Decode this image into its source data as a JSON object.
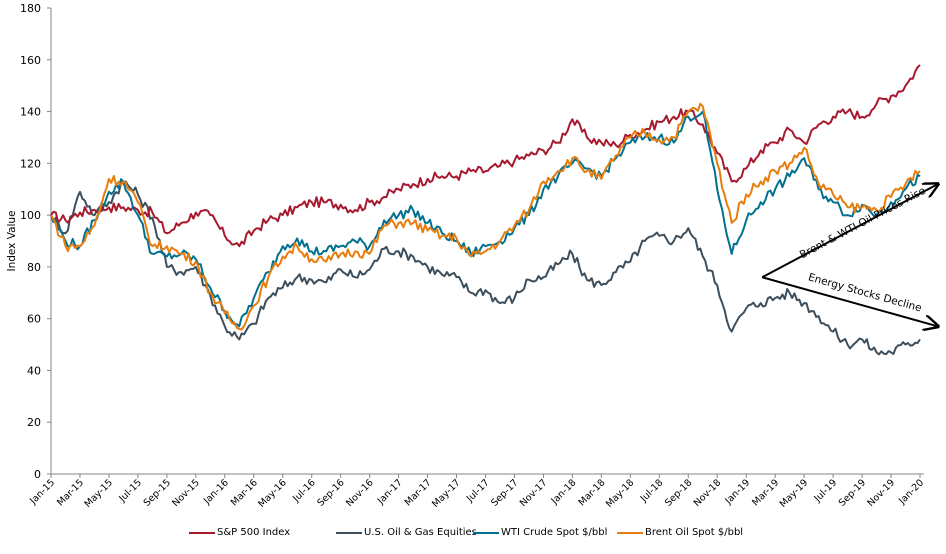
{
  "chart_data": {
    "type": "line",
    "title": "",
    "xlabel": "",
    "ylabel": "Index Value",
    "ylim": [
      0,
      180
    ],
    "yticks": [
      0,
      20,
      40,
      60,
      80,
      100,
      120,
      140,
      160,
      180
    ],
    "grid": false,
    "legend_position": "bottom",
    "x_tick_labels": [
      "Jan-15",
      "Mar-15",
      "May-15",
      "Jul-15",
      "Sep-15",
      "Nov-15",
      "Jan-16",
      "Mar-16",
      "May-16",
      "Jul-16",
      "Sep-16",
      "Nov-16",
      "Jan-17",
      "Mar-17",
      "May-17",
      "Jul-17",
      "Sep-17",
      "Nov-17",
      "Jan-18",
      "Mar-18",
      "May-18",
      "Jul-18",
      "Sep-18",
      "Nov-18",
      "Jan-19",
      "Mar-19",
      "May-19",
      "Jul-19",
      "Sep-19",
      "Nov-19",
      "Jan-20"
    ],
    "x": [
      "Jan-15",
      "Feb-15",
      "Mar-15",
      "Apr-15",
      "May-15",
      "Jun-15",
      "Jul-15",
      "Aug-15",
      "Sep-15",
      "Oct-15",
      "Nov-15",
      "Dec-15",
      "Jan-16",
      "Feb-16",
      "Mar-16",
      "Apr-16",
      "May-16",
      "Jun-16",
      "Jul-16",
      "Aug-16",
      "Sep-16",
      "Oct-16",
      "Nov-16",
      "Dec-16",
      "Jan-17",
      "Feb-17",
      "Mar-17",
      "Apr-17",
      "May-17",
      "Jun-17",
      "Jul-17",
      "Aug-17",
      "Sep-17",
      "Oct-17",
      "Nov-17",
      "Dec-17",
      "Jan-18",
      "Feb-18",
      "Mar-18",
      "Apr-18",
      "May-18",
      "Jun-18",
      "Jul-18",
      "Aug-18",
      "Sep-18",
      "Oct-18",
      "Nov-18",
      "Dec-18",
      "Jan-19",
      "Feb-19",
      "Mar-19",
      "Apr-19",
      "May-19",
      "Jun-19",
      "Jul-19",
      "Aug-19",
      "Sep-19",
      "Oct-19",
      "Nov-19",
      "Dec-19",
      "Jan-20"
    ],
    "series": [
      {
        "name": "S&P 500 Index",
        "color": "#A6192E",
        "values": [
          100,
          98,
          101,
          102,
          103,
          103,
          102,
          101,
          93,
          97,
          101,
          100,
          92,
          88,
          94,
          98,
          100,
          103,
          105,
          105,
          104,
          102,
          105,
          107,
          110,
          112,
          114,
          115,
          115,
          117,
          117,
          119,
          121,
          123,
          125,
          128,
          137,
          130,
          128,
          127,
          131,
          133,
          136,
          138,
          140,
          135,
          124,
          113,
          118,
          125,
          128,
          133,
          128,
          135,
          138,
          140,
          138,
          143,
          146,
          150,
          158
        ]
      },
      {
        "name": "U.S. Oil & Gas Equities",
        "color": "#3D4F5C",
        "values": [
          100,
          93,
          109,
          100,
          105,
          113,
          108,
          99,
          80,
          78,
          80,
          69,
          57,
          52,
          58,
          68,
          72,
          76,
          75,
          74,
          79,
          76,
          79,
          87,
          86,
          84,
          80,
          77,
          76,
          70,
          71,
          66,
          68,
          75,
          76,
          81,
          85,
          75,
          73,
          78,
          82,
          90,
          92,
          90,
          95,
          84,
          73,
          55,
          64,
          66,
          68,
          70,
          66,
          61,
          55,
          50,
          52,
          47,
          47,
          50,
          52
        ]
      },
      {
        "name": "WTI Crude Spot $/bbl",
        "color": "#00718F",
        "values": [
          100,
          90,
          88,
          98,
          109,
          113,
          100,
          85,
          84,
          85,
          83,
          72,
          63,
          57,
          68,
          78,
          88,
          91,
          86,
          86,
          88,
          90,
          88,
          98,
          100,
          102,
          97,
          93,
          90,
          85,
          88,
          90,
          95,
          100,
          110,
          115,
          120,
          118,
          115,
          122,
          128,
          130,
          130,
          128,
          138,
          140,
          110,
          85,
          98,
          105,
          110,
          115,
          122,
          110,
          105,
          100,
          104,
          100,
          105,
          110,
          115
        ]
      },
      {
        "name": "Brent Oil Spot $/bbl",
        "color": "#E87D0D",
        "values": [
          100,
          88,
          88,
          96,
          114,
          113,
          105,
          88,
          88,
          85,
          82,
          70,
          62,
          56,
          65,
          76,
          84,
          88,
          83,
          82,
          85,
          86,
          85,
          96,
          97,
          97,
          94,
          92,
          91,
          84,
          86,
          90,
          96,
          102,
          113,
          117,
          122,
          117,
          114,
          123,
          130,
          132,
          129,
          130,
          140,
          142,
          120,
          97,
          108,
          113,
          117,
          120,
          126,
          112,
          108,
          103,
          103,
          102,
          107,
          112,
          117
        ]
      }
    ],
    "annotations": [
      {
        "text": "Brent & WTI Oil Prices Rise",
        "from": [
          "Jan-19",
          76
        ],
        "to": [
          "Jan-20",
          112
        ]
      },
      {
        "text": "Energy Stocks Decline",
        "from": [
          "Jan-19",
          76
        ],
        "to": [
          "Jan-20",
          57
        ]
      }
    ]
  }
}
